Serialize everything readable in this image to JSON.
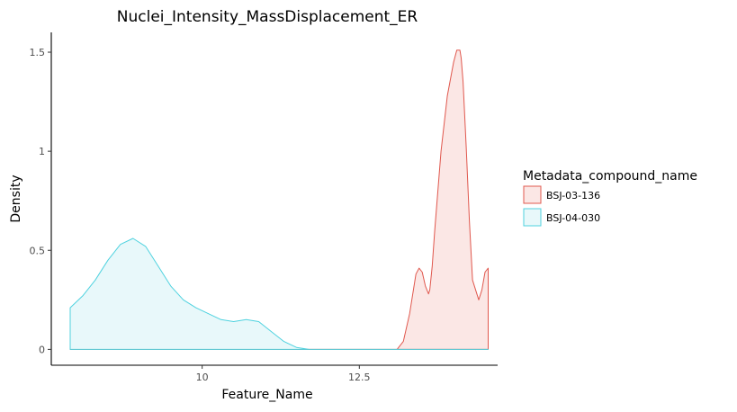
{
  "chart_data": {
    "type": "area",
    "title": "Nuclei_Intensity_MassDisplacement_ER",
    "xlabel": "Feature_Name",
    "ylabel": "Density",
    "xlim": [
      7.6,
      14.7
    ],
    "ylim": [
      -0.08,
      1.6
    ],
    "xticks": [
      10,
      12.5
    ],
    "xtick_labels": [
      "10",
      "12.5"
    ],
    "yticks": [
      0,
      0.5,
      1,
      1.5
    ],
    "ytick_labels": [
      "0",
      "0.5",
      "1",
      "1.5"
    ],
    "grid": false,
    "legend_title": "Metadata_compound_name",
    "legend_position": "right",
    "series": [
      {
        "name": "BSJ-03-136",
        "color": "#e0584e",
        "fill": "#fbe7e5",
        "x": [
          13.1,
          13.2,
          13.3,
          13.4,
          13.45,
          13.5,
          13.55,
          13.6,
          13.62,
          13.66,
          13.7,
          13.8,
          13.9,
          14.0,
          14.05,
          14.1,
          14.12,
          14.15,
          14.2,
          14.25,
          14.3,
          14.4,
          14.45,
          14.5,
          14.55
        ],
        "y": [
          0.0,
          0.04,
          0.18,
          0.38,
          0.41,
          0.39,
          0.32,
          0.28,
          0.3,
          0.42,
          0.6,
          1.0,
          1.28,
          1.45,
          1.51,
          1.51,
          1.47,
          1.35,
          1.02,
          0.65,
          0.35,
          0.25,
          0.3,
          0.39,
          0.41
        ]
      },
      {
        "name": "BSJ-04-030",
        "color": "#4fd2df",
        "fill": "#e8f8fa",
        "x": [
          7.9,
          8.1,
          8.3,
          8.5,
          8.7,
          8.9,
          9.1,
          9.3,
          9.5,
          9.7,
          9.9,
          10.1,
          10.3,
          10.5,
          10.7,
          10.9,
          11.1,
          11.3,
          11.5,
          11.7,
          12.0,
          12.5,
          13.0,
          13.5,
          14.0,
          14.55
        ],
        "y": [
          0.21,
          0.27,
          0.35,
          0.45,
          0.53,
          0.56,
          0.52,
          0.42,
          0.32,
          0.25,
          0.21,
          0.18,
          0.15,
          0.14,
          0.15,
          0.14,
          0.09,
          0.04,
          0.01,
          0.0,
          0.0,
          0.0,
          0.0,
          0.0,
          0.0,
          0.0
        ]
      }
    ]
  }
}
